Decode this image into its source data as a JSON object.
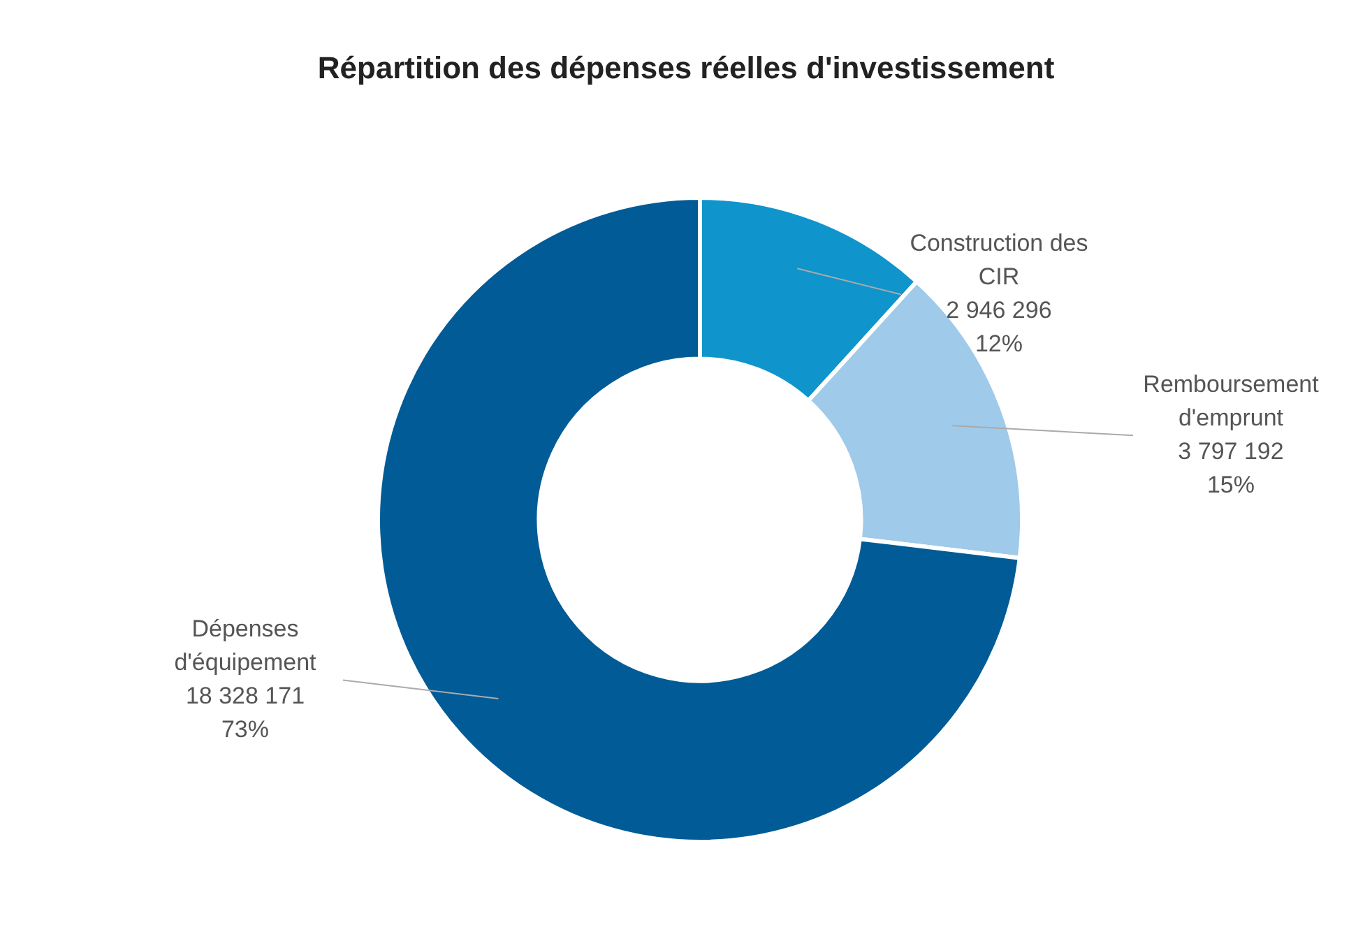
{
  "chart_data": {
    "type": "donut",
    "title": "Répartition des dépenses réelles d'investissement",
    "categories": [
      "Construction des CIR",
      "Remboursement d'emprunt",
      "Dépenses d'équipement"
    ],
    "values": [
      2946296,
      3797192,
      18328171
    ],
    "colors": [
      "#0f94cc",
      "#9fcaea",
      "#005b96"
    ],
    "value_labels": [
      "2 946 296\n12%",
      "3 797 192\n15%",
      "18 328 171\n73%"
    ],
    "legend": false
  }
}
